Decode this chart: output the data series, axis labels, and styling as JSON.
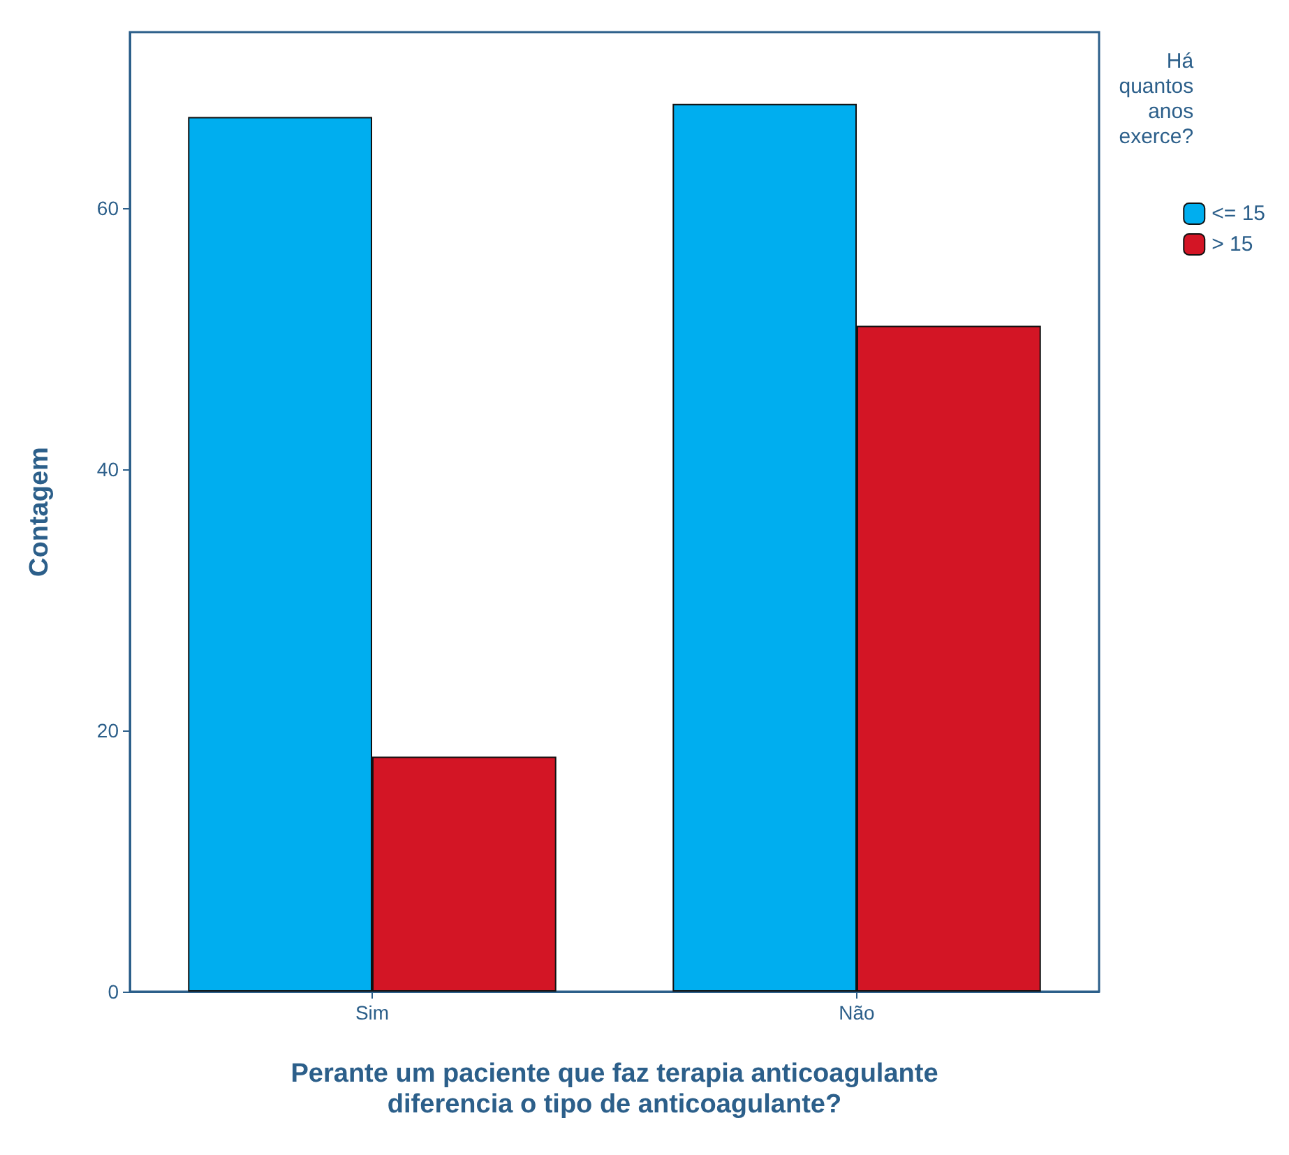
{
  "chart_data": {
    "type": "bar",
    "xlabel": "Perante um paciente que faz terapia anticoagulante\ndiferencia o tipo de anticoagulante?",
    "ylabel": "Contagem",
    "legend_title": "Há\nquantos\nanos\nexerce?",
    "categories": [
      "Sim",
      "Não"
    ],
    "series": [
      {
        "name": "<= 15",
        "color": "#00aeef",
        "values": [
          67,
          68
        ]
      },
      {
        "name": "> 15",
        "color": "#d31525",
        "values": [
          18,
          51
        ]
      }
    ],
    "ylim": [
      0,
      73.5
    ],
    "yticks": [
      0,
      20,
      40,
      60
    ],
    "grid": false,
    "legend": "top right"
  }
}
